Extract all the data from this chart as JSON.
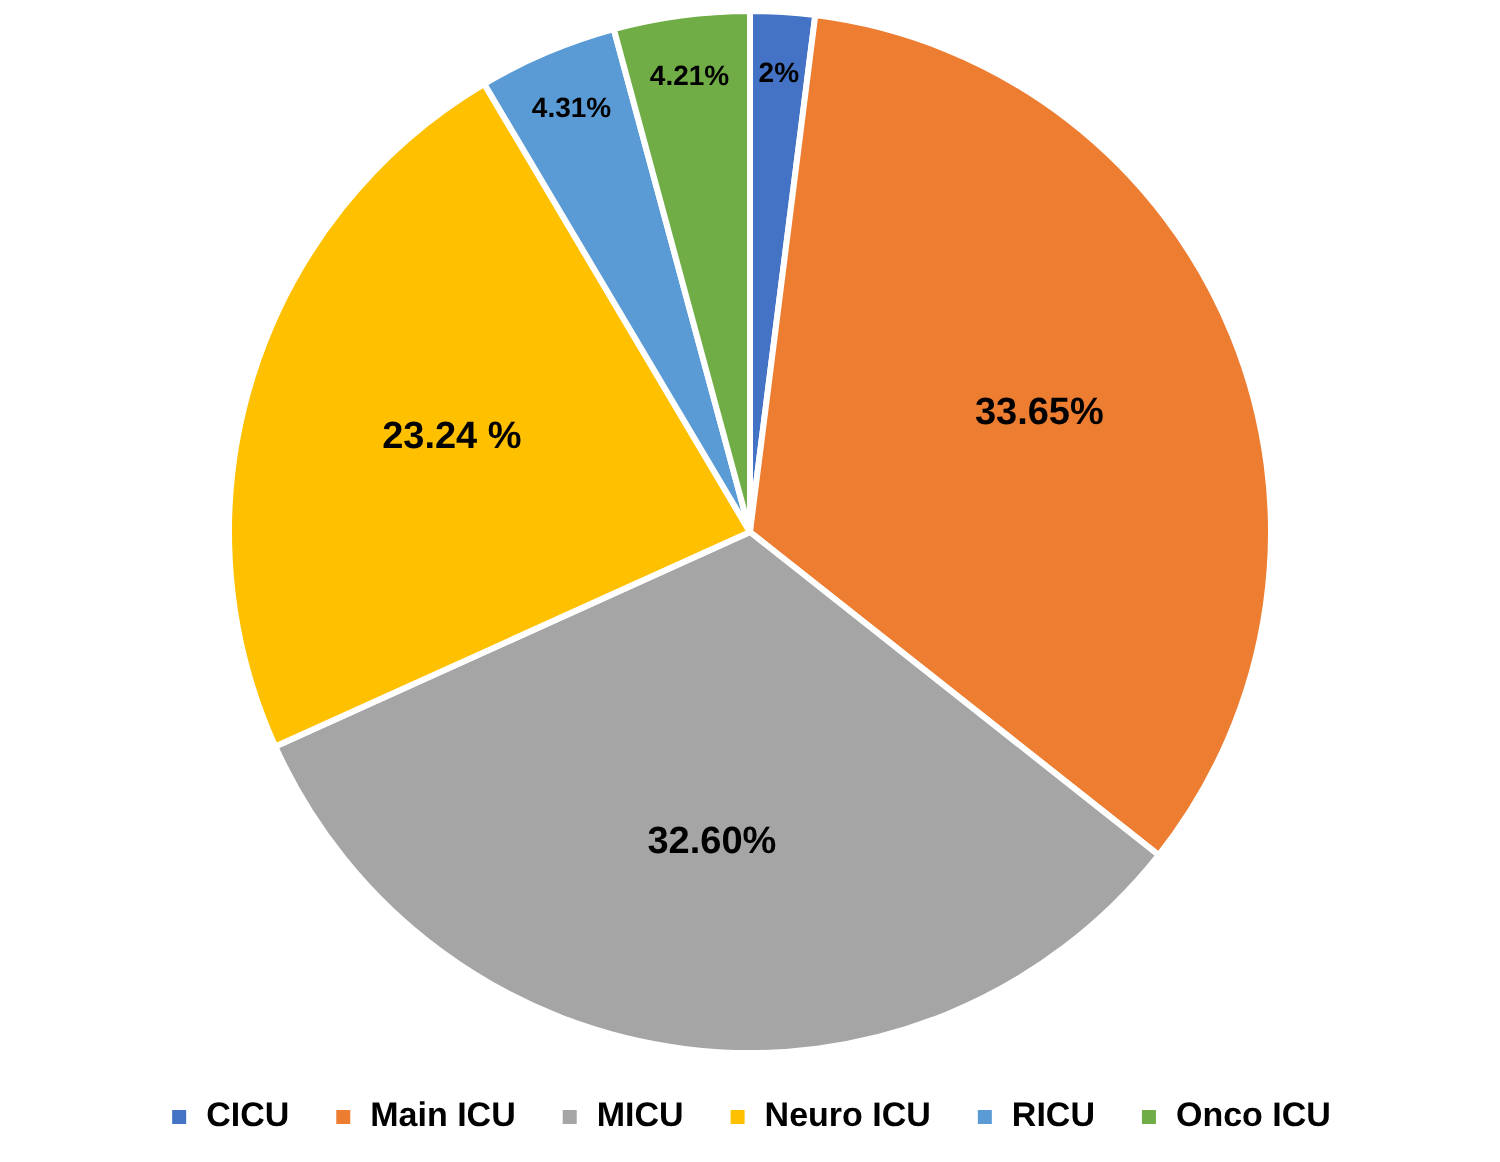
{
  "chart_data": {
    "type": "pie",
    "categories": [
      "CICU",
      "Main ICU",
      "MICU",
      "Neuro ICU",
      "RICU",
      "Onco ICU"
    ],
    "values": [
      2,
      33.65,
      32.6,
      23.24,
      4.31,
      4.21
    ],
    "value_labels": [
      "2%",
      "33.65%",
      "32.60%",
      "23.24 %",
      "4.31%",
      "4.21%"
    ],
    "colors": [
      "#4472c4",
      "#ed7d31",
      "#a5a5a5",
      "#ffc000",
      "#5b9bd5",
      "#70ad47"
    ],
    "legend": "bottom"
  }
}
